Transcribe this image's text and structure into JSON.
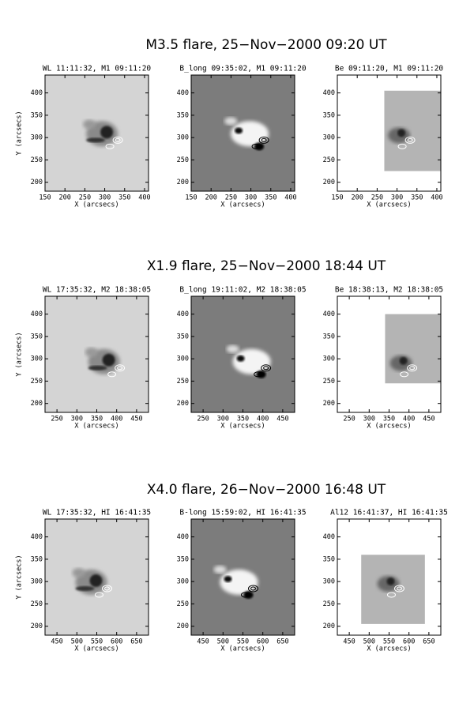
{
  "rows": [
    {
      "title": "M3.5 flare, 25−Nov−2000 09:20 UT",
      "xlim": [
        150,
        410
      ],
      "ylim": [
        180,
        440
      ],
      "xticks": [
        150,
        200,
        250,
        300,
        350,
        400
      ],
      "yticks": [
        200,
        250,
        300,
        350,
        400
      ],
      "y_label": "Y (arcsecs)",
      "panels": [
        {
          "title": "WL 11:11:32, M1 09:11:20",
          "x_label": "X (arcsecs)"
        },
        {
          "title": "B_long 09:35:02, M1 09:11:20",
          "x_label": "X (arcsecs)"
        },
        {
          "title": "Be 09:11:20, M1 09:11:20",
          "x_label": "X (arcsecs)"
        }
      ]
    },
    {
      "title": "X1.9 flare, 25−Nov−2000 18:44 UT",
      "xlim": [
        220,
        480
      ],
      "ylim": [
        180,
        440
      ],
      "xticks": [
        250,
        300,
        350,
        400,
        450
      ],
      "yticks": [
        200,
        250,
        300,
        350,
        400
      ],
      "y_label": "Y (arcsecs)",
      "panels": [
        {
          "title": "WL 17:35:32, M2 18:38:05",
          "x_label": "X (arcsecs)"
        },
        {
          "title": "B_long 19:11:02, M2 18:38:05",
          "x_label": "X (arcsecs)"
        },
        {
          "title": "Be 18:38:13, M2 18:38:05",
          "x_label": "X (arcsecs)"
        }
      ]
    },
    {
      "title": "X4.0 flare, 26−Nov−2000 16:48 UT",
      "xlim": [
        420,
        680
      ],
      "ylim": [
        180,
        440
      ],
      "xticks": [
        450,
        500,
        550,
        600,
        650
      ],
      "yticks": [
        200,
        250,
        300,
        350,
        400
      ],
      "y_label": "Y (arcsecs)",
      "panels": [
        {
          "title": "WL 17:35:32, HI 16:41:35",
          "x_label": "X (arcsecs)"
        },
        {
          "title": "B-long 15:59:02, HI 16:41:35",
          "x_label": "X (arcsecs)"
        },
        {
          "title": "Al12 16:41:37, HI 16:41:35",
          "x_label": "X (arcsecs)"
        }
      ]
    }
  ]
}
